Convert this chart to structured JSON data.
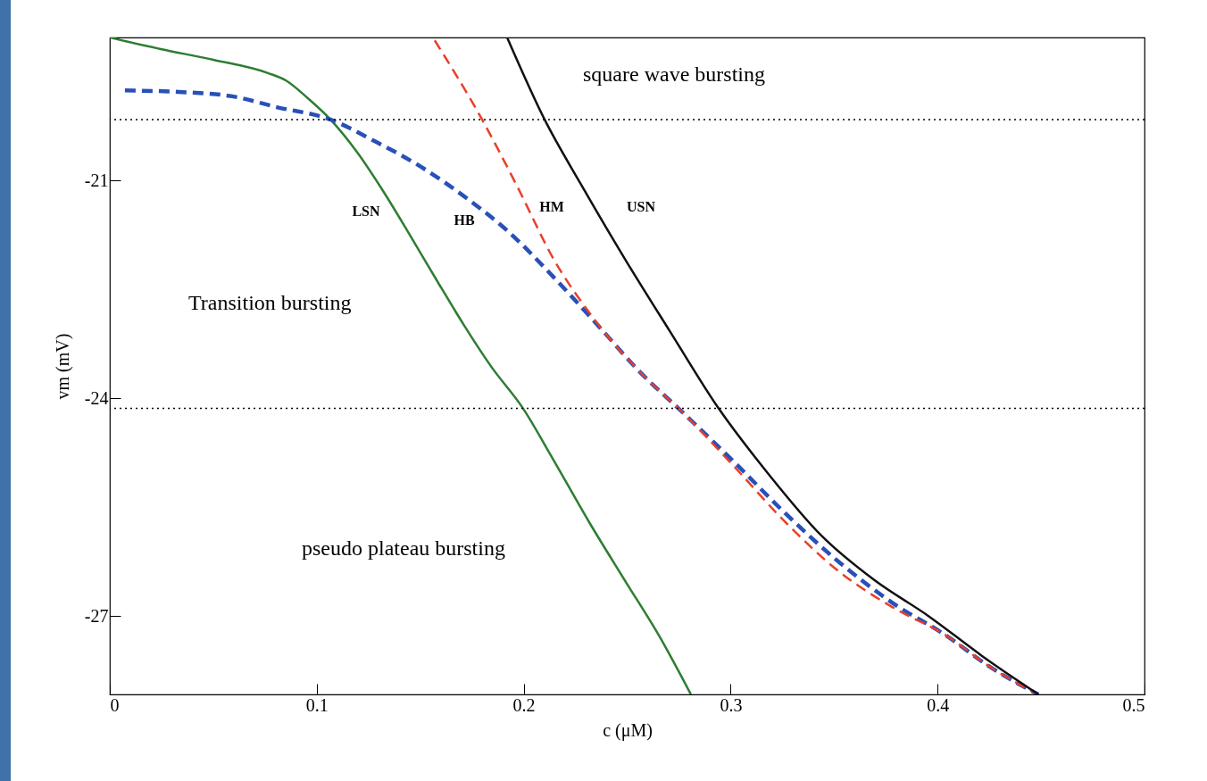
{
  "chart_data": {
    "type": "line",
    "xlabel": "c (μM)",
    "ylabel": "vm (mV)",
    "xlim": [
      0,
      0.5
    ],
    "ylim": [
      -28.08,
      -19.03
    ],
    "xticks": [
      0,
      0.1,
      0.2,
      0.3,
      0.4,
      0.5
    ],
    "yticks": [
      -21,
      -24,
      -27
    ],
    "grid": false,
    "series": [
      {
        "name": "LSN",
        "color": "#2e7d32",
        "line_style": "solid",
        "x": [
          0,
          0.0246,
          0.0505,
          0.0764,
          0.085,
          0.0958,
          0.1066,
          0.1195,
          0.1324,
          0.1454,
          0.1583,
          0.1713,
          0.1842,
          0.1997,
          0.2144,
          0.2317,
          0.2489,
          0.2662,
          0.2808
        ],
        "values": [
          -19.03,
          -19.19,
          -19.34,
          -19.52,
          -19.62,
          -19.87,
          -20.16,
          -20.61,
          -21.16,
          -21.77,
          -22.39,
          -23.0,
          -23.56,
          -24.14,
          -24.85,
          -25.71,
          -26.51,
          -27.31,
          -28.08
        ]
      },
      {
        "name": "HB",
        "color": "#2950b8",
        "line_style": "dashed",
        "x": [
          0.0073,
          0.0332,
          0.0591,
          0.0807,
          0.1066,
          0.1281,
          0.1497,
          0.1713,
          0.1928,
          0.2144,
          0.236,
          0.2576,
          0.2748,
          0.3007,
          0.3266,
          0.3525,
          0.3783,
          0.4042,
          0.4258,
          0.4487
        ],
        "values": [
          -19.76,
          -19.78,
          -19.84,
          -19.99,
          -20.16,
          -20.46,
          -20.8,
          -21.22,
          -21.71,
          -22.33,
          -23.0,
          -23.68,
          -24.14,
          -24.85,
          -25.59,
          -26.26,
          -26.82,
          -27.27,
          -27.71,
          -28.08
        ]
      },
      {
        "name": "HM",
        "color": "#e8402a",
        "line_style": "dashed",
        "x": [
          0.157,
          0.1799,
          0.1972,
          0.2144,
          0.2317,
          0.2576,
          0.2748,
          0.3007,
          0.3266,
          0.3525,
          0.3783,
          0.4042,
          0.4258,
          0.4487
        ],
        "values": [
          -19.07,
          -20.16,
          -21.1,
          -22.08,
          -22.82,
          -23.68,
          -24.14,
          -24.91,
          -25.71,
          -26.39,
          -26.88,
          -27.27,
          -27.71,
          -28.08
        ]
      },
      {
        "name": "USN",
        "color": "#111111",
        "line_style": "solid",
        "x": [
          0.192,
          0.2101,
          0.2274,
          0.2489,
          0.2705,
          0.2942,
          0.3179,
          0.3438,
          0.3697,
          0.3956,
          0.4215,
          0.4487
        ],
        "values": [
          -19.03,
          -20.16,
          -21.04,
          -22.08,
          -23.07,
          -24.14,
          -25.03,
          -25.89,
          -26.51,
          -27.0,
          -27.55,
          -28.08
        ]
      }
    ],
    "ref_lines": [
      {
        "axis": "y",
        "value": -20.16,
        "line_style": "dotted",
        "color": "#000000"
      },
      {
        "axis": "y",
        "value": -24.14,
        "line_style": "dotted",
        "color": "#000000"
      }
    ],
    "annotations": [
      "square  wave bursting",
      "Transition bursting",
      "pseudo plateau bursting"
    ]
  }
}
